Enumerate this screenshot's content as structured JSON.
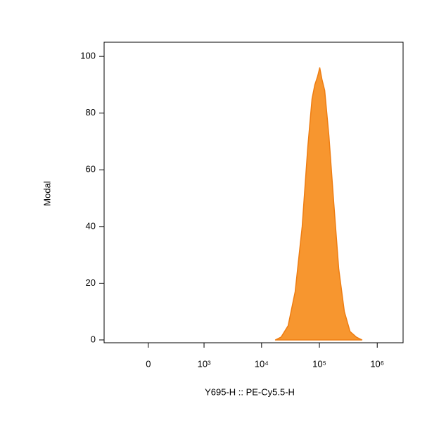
{
  "chart_data": {
    "type": "area",
    "xlabel": "Y695-H :: PE-Cy5.5-H",
    "ylabel": "Modal",
    "xscale": "biexponential",
    "x": [
      17400,
      21800,
      28800,
      38100,
      50400,
      63000,
      74600,
      83400,
      93300,
      101400,
      110400,
      123400,
      146000,
      177600,
      216000,
      270000,
      338000,
      435000,
      543000
    ],
    "values": [
      0,
      1,
      5,
      17,
      40,
      68,
      85,
      90,
      93,
      96,
      92,
      88,
      72,
      48,
      25,
      10,
      3,
      1,
      0
    ],
    "color": "#f7962f",
    "xlim": [
      -620,
      2800000
    ],
    "xticks": [
      0,
      {
        "value": 1000,
        "label": "10³"
      },
      {
        "value": 10000,
        "label": "10⁴"
      },
      {
        "value": 100000,
        "label": "10⁵"
      },
      {
        "value": 1000000,
        "label": "10⁶"
      }
    ],
    "ylim": [
      -1,
      105
    ],
    "yticks": [
      0,
      20,
      40,
      60,
      80,
      100
    ]
  }
}
